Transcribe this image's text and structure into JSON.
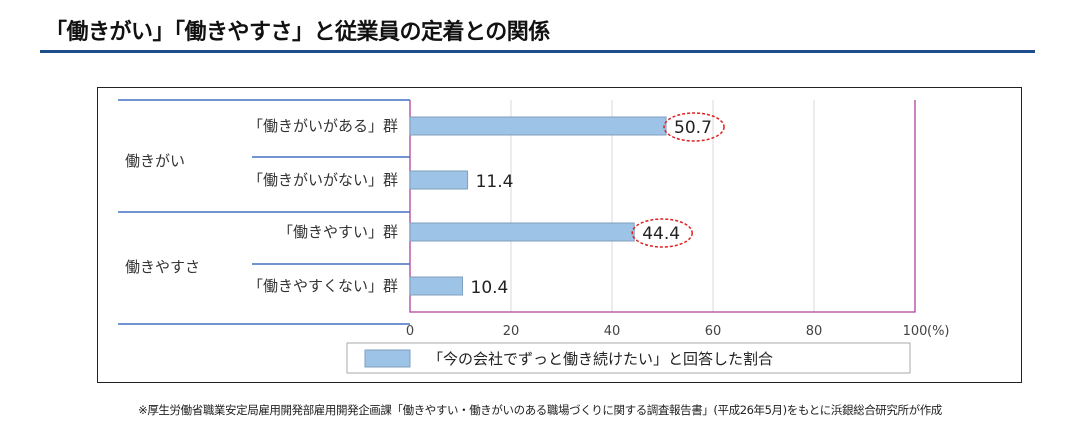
{
  "title": "「働きがい」「働きやすさ」と従業員の定着との関係",
  "footnote": "※厚生労働省職業安定局雇用開発部雇用開発企画課「働きやすい・働きがいのある職場づくりに関する調査報告書」(平成26年5月)をもとに浜銀総合研究所が作成",
  "chart_data": {
    "type": "bar",
    "orientation": "horizontal",
    "groups": [
      {
        "label": "働きがい",
        "categories": [
          "「働きがいがある」群",
          "「働きがいがない」群"
        ]
      },
      {
        "label": "働きやすさ",
        "categories": [
          "「働きやすい」群",
          "「働きやすくない」群"
        ]
      }
    ],
    "categories": [
      "「働きがいがある」群",
      "「働きがいがない」群",
      "「働きやすい」群",
      "「働きやすくない」群"
    ],
    "series": [
      {
        "name": "「今の会社でずっと働き続けたい」と回答した割合",
        "values": [
          50.7,
          11.4,
          44.4,
          10.4
        ]
      }
    ],
    "data_labels": [
      "50.7",
      "11.4",
      "44.4",
      "10.4"
    ],
    "highlighted": [
      "50.7",
      "44.4"
    ],
    "xlim": [
      0,
      100
    ],
    "xticks": [
      "0",
      "20",
      "40",
      "60",
      "80",
      "100"
    ],
    "xunit": "(%)",
    "grid": true,
    "legend": "bottom",
    "colors": {
      "bar": "#9dc3e6",
      "bar_border": "#7f9fbf",
      "axis": "#b0409a",
      "group_lines": "#4472c4",
      "highlight": "#e02020"
    }
  }
}
